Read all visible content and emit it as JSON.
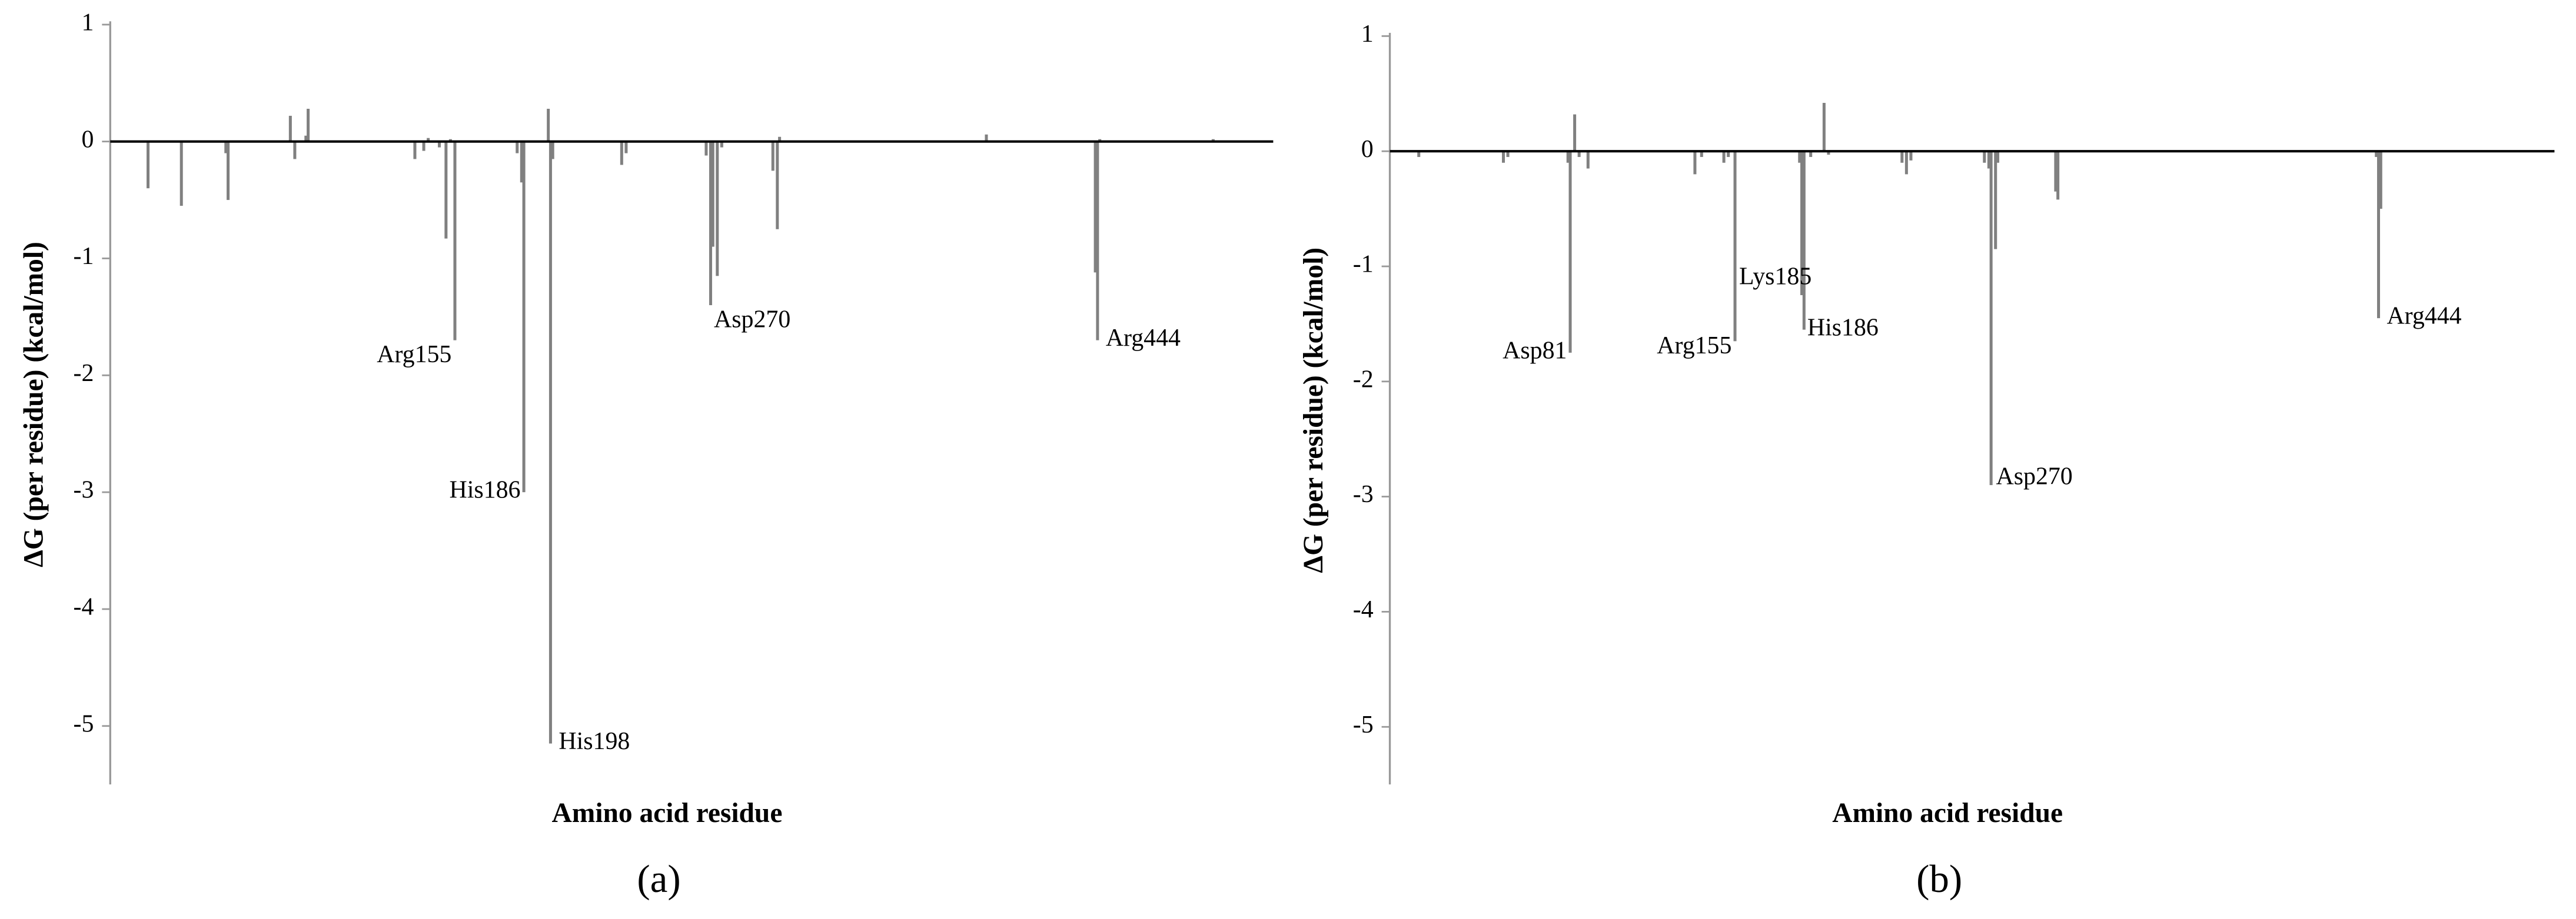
{
  "chart_data": [
    {
      "type": "bar",
      "caption": "(a)",
      "ylabel": "ΔG (per residue) (kcal/mol)",
      "xlabel": "Amino acid residue",
      "color": "#808080",
      "xlim": [
        0,
        523
      ],
      "ylim": [
        -5.5,
        1
      ],
      "yticks": [
        -5,
        -4,
        -3,
        -2,
        -1,
        0,
        1
      ],
      "x": [
        17,
        32,
        52,
        53,
        81,
        83,
        88,
        89,
        137,
        141,
        143,
        148,
        151,
        153,
        155,
        183,
        185,
        186,
        197,
        198,
        199,
        230,
        232,
        268,
        270,
        271,
        273,
        275,
        298,
        300,
        301,
        394,
        443,
        444,
        445,
        496
      ],
      "values": [
        -0.4,
        -0.55,
        -0.1,
        -0.5,
        0.22,
        -0.15,
        0.05,
        0.28,
        -0.15,
        -0.08,
        0.03,
        -0.05,
        -0.83,
        0.02,
        -1.7,
        -0.1,
        -0.35,
        -3.0,
        0.28,
        -5.15,
        -0.15,
        -0.2,
        -0.1,
        -0.12,
        -1.4,
        -0.9,
        -1.15,
        -0.05,
        -0.25,
        -0.75,
        0.04,
        0.06,
        -1.12,
        -1.7,
        0.02,
        0.02
      ],
      "annotations": [
        {
          "text": "Arg155",
          "x": 155,
          "y": -1.7
        },
        {
          "text": "His186",
          "x": 186,
          "y": -3.0
        },
        {
          "text": "His198",
          "x": 198,
          "y": -5.15
        },
        {
          "text": "Asp270",
          "x": 270,
          "y": -1.4
        },
        {
          "text": "Arg444",
          "x": 444,
          "y": -1.7
        }
      ]
    },
    {
      "type": "bar",
      "caption": "(b)",
      "ylabel": "ΔG (per residue) (kcal/mol)",
      "xlabel": "Amino acid residue",
      "color": "#808080",
      "xlim": [
        0,
        523
      ],
      "ylim": [
        -5.5,
        1
      ],
      "yticks": [
        -5,
        -4,
        -3,
        -2,
        -1,
        0,
        1
      ],
      "x": [
        13,
        51,
        53,
        80,
        81,
        83,
        85,
        89,
        137,
        140,
        150,
        152,
        155,
        184,
        185,
        186,
        189,
        195,
        197,
        230,
        232,
        234,
        267,
        269,
        270,
        272,
        273,
        299,
        300,
        443,
        444,
        445
      ],
      "values": [
        -0.05,
        -0.1,
        -0.05,
        -0.1,
        -1.75,
        0.32,
        -0.05,
        -0.15,
        -0.2,
        -0.05,
        -0.1,
        -0.05,
        -1.65,
        -0.1,
        -1.25,
        -1.55,
        -0.05,
        0.42,
        -0.03,
        -0.1,
        -0.2,
        -0.08,
        -0.1,
        -0.15,
        -2.9,
        -0.85,
        -0.1,
        -0.35,
        -0.42,
        -0.05,
        -1.45,
        -0.5
      ],
      "annotations": [
        {
          "text": "Asp81",
          "x": 81,
          "y": -1.75
        },
        {
          "text": "Arg155",
          "x": 155,
          "y": -1.65
        },
        {
          "text": "Lys185",
          "x": 185,
          "y": -1.25
        },
        {
          "text": "His186",
          "x": 186,
          "y": -1.55
        },
        {
          "text": "Asp270",
          "x": 270,
          "y": -2.9
        },
        {
          "text": "Arg444",
          "x": 444,
          "y": -1.45
        }
      ]
    }
  ]
}
